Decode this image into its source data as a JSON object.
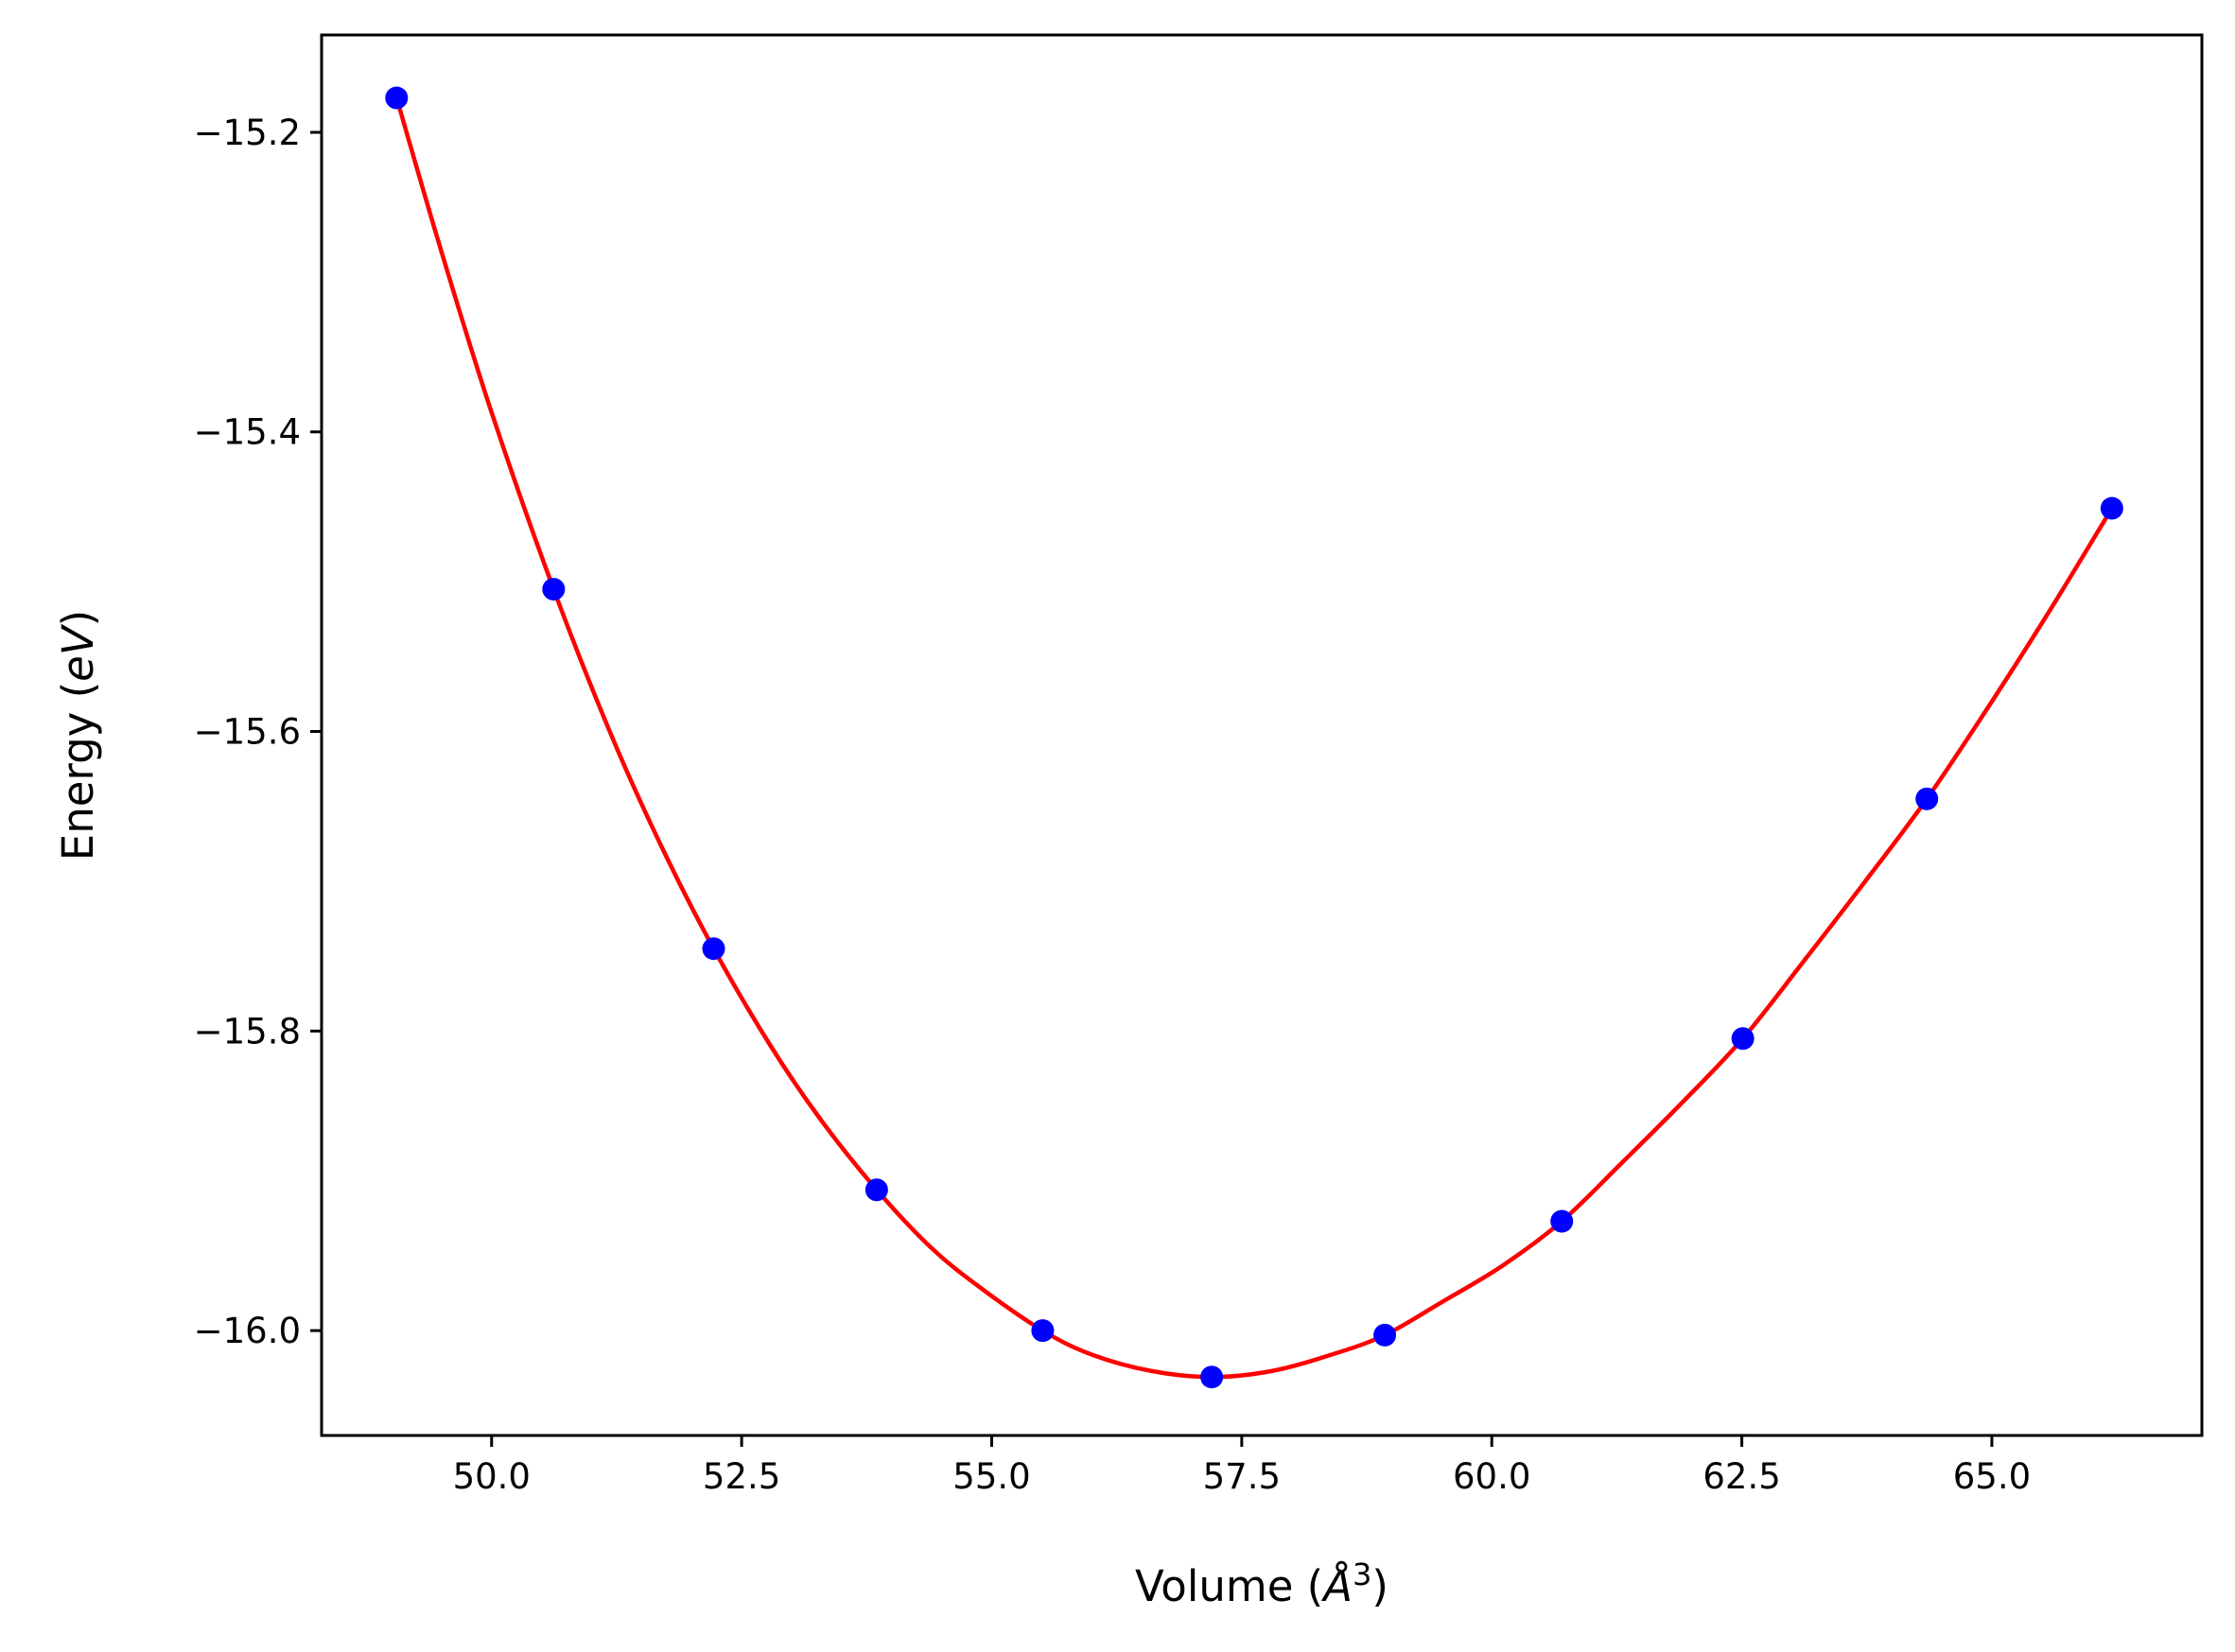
{
  "chart_data": {
    "type": "scatter",
    "xlabel": "Volume (",
    "xlabel_symbol": "Å",
    "xlabel_exponent": "3",
    "xlabel_close": ")",
    "ylabel": "Energy (",
    "ylabel_unit": "eV",
    "ylabel_close": ")",
    "xlim": [
      48.3,
      67.1
    ],
    "ylim": [
      -16.07,
      -15.135
    ],
    "xticks": [
      50.0,
      52.5,
      55.0,
      57.5,
      60.0,
      62.5,
      65.0
    ],
    "xtick_labels": [
      "50.0",
      "52.5",
      "55.0",
      "57.5",
      "60.0",
      "62.5",
      "65.0"
    ],
    "yticks": [
      -15.2,
      -15.4,
      -15.6,
      -15.8,
      -16.0
    ],
    "ytick_labels": [
      "−15.2",
      "−15.4",
      "−15.6",
      "−15.8",
      "−16.0"
    ],
    "grid": false,
    "series": [
      {
        "kind": "points",
        "color": "#0000ff",
        "x": [
          49.05,
          50.62,
          52.22,
          53.85,
          55.51,
          57.2,
          58.93,
          60.7,
          62.51,
          64.35,
          66.2
        ],
        "y": [
          -15.177,
          -15.505,
          -15.745,
          -15.906,
          -16.0,
          -16.031,
          -16.003,
          -15.927,
          -15.805,
          -15.645,
          -15.451
        ]
      },
      {
        "kind": "fit-curve",
        "color": "#ff0000",
        "x": [
          49.05,
          49.5,
          50.0,
          50.62,
          51.2,
          51.7,
          52.22,
          52.8,
          53.3,
          53.85,
          54.4,
          54.9,
          55.51,
          56.0,
          56.6,
          57.2,
          57.8,
          58.4,
          58.93,
          59.5,
          60.1,
          60.7,
          61.3,
          61.9,
          62.51,
          63.1,
          63.7,
          64.35,
          65.0,
          65.6,
          66.2
        ],
        "y": [
          -15.177,
          -15.28,
          -15.387,
          -15.505,
          -15.603,
          -15.677,
          -15.745,
          -15.811,
          -15.86,
          -15.906,
          -15.945,
          -15.972,
          -16.0,
          -16.016,
          -16.027,
          -16.031,
          -16.027,
          -16.016,
          -16.003,
          -15.981,
          -15.957,
          -15.927,
          -15.888,
          -15.848,
          -15.805,
          -15.755,
          -15.703,
          -15.645,
          -15.58,
          -15.517,
          -15.451
        ]
      }
    ]
  }
}
